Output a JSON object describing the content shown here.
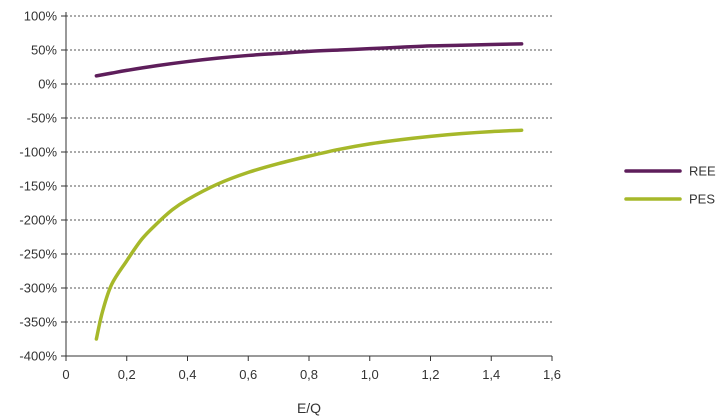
{
  "chart_data": {
    "type": "line",
    "xlabel": "E/Q",
    "ylabel": "",
    "xlim": [
      0,
      1.6
    ],
    "ylim": [
      -400,
      100
    ],
    "x_ticks": [
      0,
      0.2,
      0.4,
      0.6,
      0.8,
      1.0,
      1.2,
      1.4,
      1.6
    ],
    "x_tick_labels": [
      "0",
      "0,2",
      "0,4",
      "0,6",
      "0,8",
      "1,0",
      "1,2",
      "1,4",
      "1,6"
    ],
    "y_ticks": [
      100,
      50,
      0,
      -50,
      -100,
      -150,
      -200,
      -250,
      -300,
      -350,
      -400
    ],
    "y_tick_labels": [
      "100%",
      "50%",
      "0%",
      "-50%",
      "-100%",
      "-150%",
      "-200%",
      "-250%",
      "-300%",
      "-350%",
      "-400%"
    ],
    "grid": "horizontal-dotted",
    "legend_position": "right",
    "series": [
      {
        "name": "REE",
        "color": "#5e1e5b",
        "x": [
          0.1,
          0.15,
          0.2,
          0.3,
          0.4,
          0.5,
          0.6,
          0.7,
          0.8,
          0.9,
          1.0,
          1.1,
          1.2,
          1.3,
          1.4,
          1.5
        ],
        "y": [
          12,
          16,
          20,
          27,
          33,
          38,
          42,
          45,
          48,
          50,
          52,
          54,
          56,
          57,
          58,
          59
        ]
      },
      {
        "name": "PES",
        "color": "#a6b82a",
        "x": [
          0.1,
          0.12,
          0.15,
          0.2,
          0.25,
          0.3,
          0.35,
          0.4,
          0.5,
          0.6,
          0.7,
          0.8,
          0.9,
          1.0,
          1.1,
          1.2,
          1.3,
          1.4,
          1.5
        ],
        "y": [
          -375,
          -335,
          -295,
          -260,
          -228,
          -205,
          -185,
          -170,
          -147,
          -130,
          -117,
          -106,
          -96,
          -88,
          -82,
          -77,
          -73,
          -70,
          -68
        ]
      }
    ]
  }
}
